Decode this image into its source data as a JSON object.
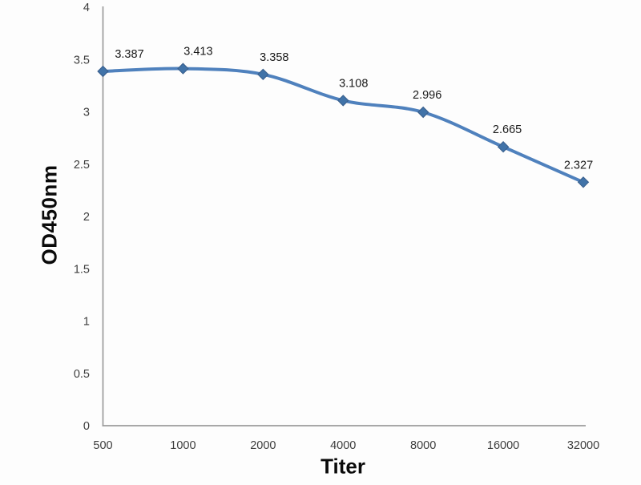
{
  "chart_data": {
    "type": "line",
    "title": "",
    "xlabel": "Titer",
    "ylabel": "OD450nm",
    "categories": [
      "500",
      "1000",
      "2000",
      "4000",
      "8000",
      "16000",
      "32000"
    ],
    "series": [
      {
        "name": "OD450nm",
        "values": [
          3.387,
          3.413,
          3.358,
          3.108,
          2.996,
          2.665,
          2.327
        ]
      }
    ],
    "data_labels": [
      "3.387",
      "3.413",
      "3.358",
      "3.108",
      "2.996",
      "2.665",
      "2.327"
    ],
    "ylim": [
      0,
      4
    ],
    "y_ticks": [
      "0",
      "0.5",
      "1",
      "1.5",
      "2",
      "2.5",
      "3",
      "3.5",
      "4"
    ],
    "grid": false,
    "legend": "none",
    "line_smoothed": true,
    "marker": "diamond",
    "colors": {
      "line": "#4F81BD",
      "marker_fill": "#4173A8",
      "marker_border": "#385D8A",
      "axis": "#9b9b9b",
      "tick_text": "#3d3d3d",
      "data_label_text": "#1a1a1a",
      "background": "#fdfdfd"
    }
  }
}
